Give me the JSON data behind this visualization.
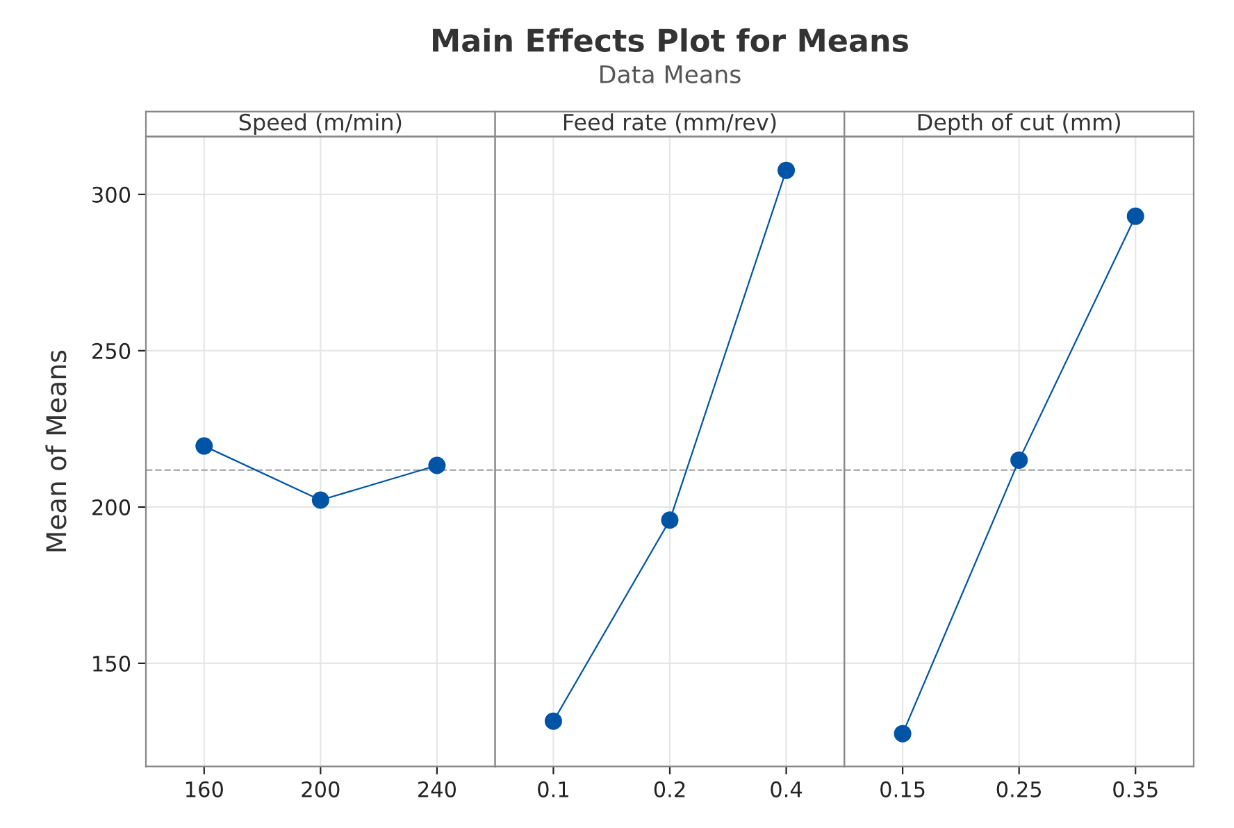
{
  "chart_data": [
    {
      "type": "line",
      "title": "Speed (m/min)",
      "ylabel": "Mean of Means",
      "annotations": [
        "Main Effects Plot for Means",
        "Data Means"
      ],
      "categories": [
        "160",
        "200",
        "240"
      ],
      "series": [
        {
          "color": "#0054a6",
          "values": [
            219.5,
            202.2,
            213.3
          ]
        }
      ],
      "ylim": [
        117,
        318.5
      ],
      "yticks": [
        150,
        200,
        250,
        300
      ],
      "ref_lines": [
        {
          "axis": "y",
          "value": 211.8,
          "color": "#b0b0b0",
          "line_style": "dashed"
        }
      ],
      "grid": true,
      "marker": "circle",
      "line_style": "solid"
    },
    {
      "type": "line",
      "title": "Feed rate (mm/rev)",
      "categories": [
        "0.1",
        "0.2",
        "0.4"
      ],
      "series": [
        {
          "color": "#0054a6",
          "values": [
            131.5,
            195.8,
            307.7
          ]
        }
      ],
      "ylim": [
        117,
        318.5
      ],
      "yticks": [
        150,
        200,
        250,
        300
      ],
      "tick_labels": "x",
      "ref_lines": [
        {
          "axis": "y",
          "value": 211.8,
          "color": "#b0b0b0",
          "line_style": "dashed"
        }
      ],
      "grid": true,
      "marker": "circle",
      "line_style": "solid"
    },
    {
      "type": "line",
      "title": "Depth of cut (mm)",
      "categories": [
        "0.15",
        "0.25",
        "0.35"
      ],
      "series": [
        {
          "color": "#0054a6",
          "values": [
            127.5,
            215.0,
            293.0
          ]
        }
      ],
      "ylim": [
        117,
        318.5
      ],
      "yticks": [
        150,
        200,
        250,
        300
      ],
      "tick_labels": "x",
      "ref_lines": [
        {
          "axis": "y",
          "value": 211.8,
          "color": "#b0b0b0",
          "line_style": "dashed"
        }
      ],
      "grid": true,
      "marker": "circle",
      "line_style": "solid"
    }
  ]
}
